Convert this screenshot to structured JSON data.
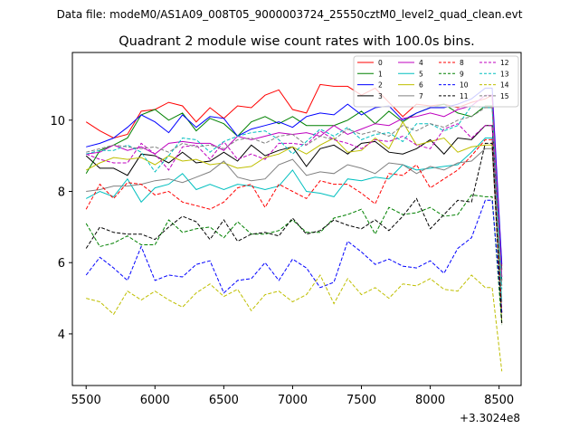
{
  "suptitle": "Data file: modeM0/AS1A09_008T05_9000003724_25550cztM0_level2_quad_clean.evt",
  "chart_data": {
    "type": "line",
    "title": "Quadrant 2 module wise count rates with 100.0s bins.",
    "xlabel": "",
    "ylabel": "",
    "x_offset_label": "+3.3024e8",
    "xlim": [
      5400,
      8660
    ],
    "ylim": [
      2.55,
      11.9
    ],
    "xticks": [
      5500,
      6000,
      6500,
      7000,
      7500,
      8000,
      8500
    ],
    "yticks": [
      4,
      6,
      8,
      10
    ],
    "grid": false,
    "legend_position": "top-right",
    "x": [
      5500,
      5600,
      5700,
      5800,
      5900,
      6000,
      6100,
      6200,
      6300,
      6400,
      6500,
      6600,
      6700,
      6800,
      6900,
      7000,
      7100,
      7200,
      7300,
      7400,
      7500,
      7600,
      7700,
      7800,
      7900,
      8000,
      8100,
      8200,
      8300,
      8400,
      8450,
      8520
    ],
    "series": [
      {
        "name": "0",
        "color": "#ff0000",
        "style": "solid",
        "values": [
          9.95,
          9.7,
          9.5,
          9.6,
          10.25,
          10.3,
          10.5,
          10.4,
          9.95,
          10.35,
          10.05,
          10.4,
          10.35,
          10.7,
          10.85,
          10.3,
          10.2,
          11.0,
          10.95,
          10.95,
          10.7,
          10.9,
          10.5,
          10.1,
          10.45,
          10.4,
          10.45,
          10.35,
          10.5,
          10.6,
          10.7,
          5.9
        ]
      },
      {
        "name": "1",
        "color": "#008000",
        "style": "solid",
        "values": [
          8.5,
          9.15,
          9.3,
          9.5,
          10.15,
          10.3,
          10.0,
          10.2,
          9.7,
          10.05,
          9.9,
          9.55,
          9.95,
          10.1,
          9.9,
          10.1,
          9.85,
          9.85,
          9.85,
          10.0,
          10.25,
          9.9,
          10.25,
          9.95,
          10.2,
          10.35,
          10.45,
          10.2,
          10.1,
          10.4,
          10.4,
          5.8
        ]
      },
      {
        "name": "2",
        "color": "#0000ff",
        "style": "solid",
        "values": [
          9.25,
          9.35,
          9.5,
          9.8,
          10.15,
          9.95,
          9.65,
          10.15,
          9.8,
          10.1,
          10.05,
          9.55,
          9.75,
          9.85,
          9.95,
          9.8,
          10.1,
          10.2,
          10.15,
          10.45,
          10.15,
          10.35,
          10.4,
          10.0,
          10.2,
          10.35,
          10.35,
          10.45,
          10.6,
          10.9,
          10.9,
          5.95
        ]
      },
      {
        "name": "3",
        "color": "#000000",
        "style": "solid",
        "values": [
          9.0,
          8.65,
          8.65,
          8.45,
          9.05,
          9.0,
          8.8,
          9.1,
          8.8,
          8.85,
          9.1,
          8.85,
          9.3,
          9.0,
          9.15,
          9.25,
          8.7,
          9.2,
          9.3,
          9.05,
          9.35,
          9.4,
          9.1,
          9.05,
          9.2,
          9.45,
          9.05,
          9.5,
          9.45,
          9.85,
          9.85,
          5.5
        ]
      },
      {
        "name": "4",
        "color": "#bf00bf",
        "style": "solid",
        "values": [
          9.05,
          9.1,
          9.3,
          9.15,
          9.25,
          9.05,
          9.35,
          9.4,
          9.35,
          9.35,
          9.15,
          9.55,
          9.45,
          9.55,
          9.65,
          9.6,
          9.65,
          9.55,
          9.85,
          9.6,
          9.75,
          9.9,
          9.85,
          10.05,
          10.1,
          10.2,
          10.1,
          10.3,
          10.4,
          10.7,
          10.7,
          5.6
        ]
      },
      {
        "name": "5",
        "color": "#00bfbf",
        "style": "solid",
        "values": [
          7.8,
          8.0,
          7.85,
          8.35,
          7.7,
          8.1,
          8.2,
          8.5,
          8.05,
          8.2,
          8.05,
          8.2,
          8.15,
          8.05,
          8.15,
          8.6,
          8.0,
          7.95,
          7.85,
          8.35,
          8.3,
          8.4,
          8.35,
          8.75,
          8.6,
          8.65,
          8.7,
          8.75,
          9.1,
          9.5,
          9.5,
          4.9
        ]
      },
      {
        "name": "6",
        "color": "#bfbf00",
        "style": "solid",
        "values": [
          8.6,
          8.8,
          8.95,
          8.9,
          8.95,
          8.75,
          9.0,
          8.85,
          8.9,
          8.75,
          8.8,
          8.65,
          8.7,
          8.95,
          9.05,
          9.25,
          9.05,
          9.3,
          9.5,
          9.1,
          9.15,
          9.5,
          9.2,
          9.95,
          9.3,
          9.4,
          9.5,
          9.1,
          9.25,
          9.3,
          9.3,
          4.3
        ]
      },
      {
        "name": "7",
        "color": "#808080",
        "style": "solid",
        "values": [
          8.0,
          8.05,
          8.15,
          8.15,
          8.2,
          8.3,
          8.35,
          8.25,
          8.4,
          8.55,
          8.85,
          8.4,
          8.3,
          8.35,
          8.75,
          8.9,
          8.45,
          8.55,
          8.5,
          8.75,
          8.65,
          8.5,
          8.8,
          8.75,
          8.5,
          8.7,
          8.6,
          8.8,
          8.85,
          9.2,
          9.2,
          4.6
        ]
      },
      {
        "name": "8",
        "color": "#ff0000",
        "style": "dashed",
        "values": [
          7.5,
          8.2,
          7.8,
          8.25,
          8.2,
          7.9,
          8.0,
          7.7,
          7.6,
          7.5,
          7.7,
          8.1,
          8.2,
          7.55,
          8.2,
          8.0,
          7.8,
          8.3,
          8.2,
          8.2,
          7.95,
          7.65,
          8.5,
          8.45,
          8.75,
          8.1,
          8.35,
          8.6,
          9.0,
          9.45,
          9.45,
          4.6
        ]
      },
      {
        "name": "9",
        "color": "#008000",
        "style": "dashed",
        "values": [
          7.1,
          6.45,
          6.55,
          6.75,
          6.5,
          6.5,
          7.2,
          6.85,
          6.95,
          7.0,
          6.7,
          7.15,
          6.8,
          6.8,
          6.9,
          7.2,
          6.85,
          6.85,
          7.25,
          7.35,
          7.5,
          6.8,
          7.55,
          7.35,
          7.4,
          7.55,
          7.3,
          7.35,
          7.9,
          7.85,
          7.85,
          4.25
        ]
      },
      {
        "name": "10",
        "color": "#0000ff",
        "style": "dashed",
        "values": [
          5.65,
          6.15,
          5.85,
          5.5,
          6.45,
          5.5,
          5.65,
          5.6,
          5.95,
          6.05,
          5.15,
          5.5,
          5.55,
          6.0,
          5.5,
          6.1,
          5.85,
          5.3,
          5.45,
          6.6,
          6.3,
          5.95,
          6.1,
          5.9,
          5.85,
          6.05,
          5.7,
          6.4,
          6.7,
          7.75,
          7.75,
          4.6
        ]
      },
      {
        "name": "11",
        "color": "#000000",
        "style": "dashed",
        "values": [
          6.4,
          7.0,
          6.85,
          6.8,
          6.8,
          6.65,
          7.0,
          7.3,
          7.15,
          6.65,
          7.2,
          6.6,
          6.8,
          6.85,
          6.75,
          7.25,
          6.8,
          6.9,
          7.2,
          7.05,
          6.95,
          7.2,
          6.9,
          7.3,
          7.8,
          6.95,
          7.35,
          7.75,
          7.7,
          9.35,
          9.35,
          4.3
        ]
      },
      {
        "name": "12",
        "color": "#bf00bf",
        "style": "dashed",
        "values": [
          9.05,
          8.9,
          8.8,
          8.8,
          9.35,
          9.05,
          8.6,
          9.25,
          9.3,
          8.9,
          9.4,
          8.9,
          9.05,
          8.9,
          9.35,
          9.35,
          9.3,
          9.7,
          9.45,
          9.35,
          9.2,
          9.45,
          9.4,
          9.55,
          9.3,
          9.2,
          9.75,
          9.9,
          9.5,
          9.85,
          9.85,
          5.6
        ]
      },
      {
        "name": "13",
        "color": "#00bfbf",
        "style": "dashed",
        "values": [
          9.05,
          9.15,
          9.15,
          9.3,
          9.1,
          8.55,
          9.0,
          9.5,
          9.45,
          9.1,
          9.4,
          9.55,
          9.65,
          9.7,
          9.45,
          9.05,
          9.4,
          9.75,
          9.55,
          9.8,
          9.45,
          9.6,
          9.65,
          9.4,
          9.9,
          9.9,
          9.7,
          9.85,
          10.4,
          10.35,
          10.35,
          5.25
        ]
      },
      {
        "name": "14",
        "color": "#bfbf00",
        "style": "dashed",
        "values": [
          5.0,
          4.9,
          4.55,
          5.2,
          4.95,
          5.2,
          4.95,
          4.75,
          5.15,
          5.4,
          5.05,
          5.25,
          4.65,
          5.1,
          5.2,
          4.9,
          5.1,
          5.65,
          4.85,
          5.55,
          5.1,
          5.3,
          5.0,
          5.4,
          5.35,
          5.55,
          5.25,
          5.2,
          5.65,
          5.3,
          5.3,
          2.95
        ]
      },
      {
        "name": "15",
        "color": "#808080",
        "style": "dashed",
        "values": [
          9.1,
          9.2,
          9.3,
          9.25,
          9.2,
          9.25,
          9.1,
          9.35,
          9.25,
          9.3,
          9.2,
          9.45,
          9.5,
          9.35,
          9.55,
          9.6,
          9.3,
          9.55,
          9.45,
          9.75,
          9.6,
          9.7,
          9.55,
          9.85,
          9.7,
          9.9,
          9.8,
          10.0,
          10.1,
          10.35,
          10.35,
          5.35
        ]
      }
    ]
  }
}
